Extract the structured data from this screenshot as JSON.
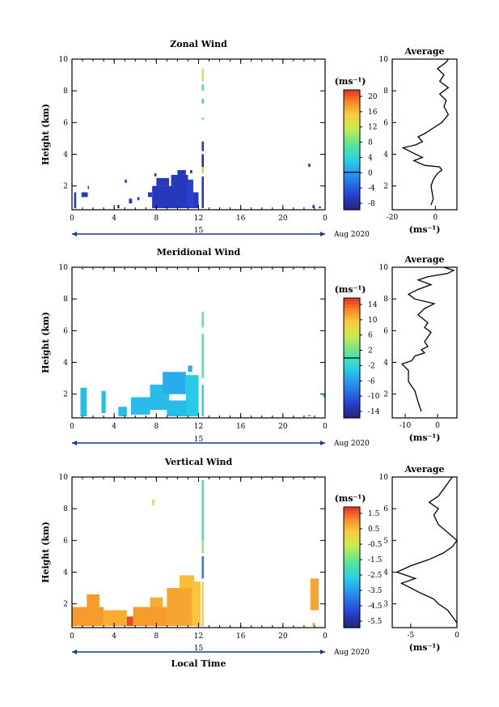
{
  "chart_data": [
    {
      "type": "heatmap",
      "title": "Zonal Wind",
      "ylabel": "Height (km)",
      "xlim": [
        0,
        24
      ],
      "ylim": [
        0.5,
        10
      ],
      "xticks": [
        "0",
        "4",
        "8",
        "12",
        "16",
        "20",
        "0"
      ],
      "yticks": [
        "2",
        "4",
        "6",
        "8",
        "10"
      ],
      "date_label": "15",
      "date_suffix": "Aug 2020",
      "colorbar": {
        "unit": "(ms⁻¹)",
        "ticks": [
          "20",
          "16",
          "12",
          "8",
          "4",
          "0",
          "-4",
          "-8"
        ],
        "range": [
          -10,
          22
        ],
        "zero_line": 0
      },
      "average": {
        "title": "Average",
        "xlim": [
          -20,
          10
        ],
        "xticks": [
          "-20",
          "0"
        ],
        "xlabel": "(ms⁻¹)",
        "yticks": [
          "2",
          "4",
          "6",
          "8",
          "10"
        ],
        "profile": [
          [
            -2,
            0.8
          ],
          [
            -1,
            1.2
          ],
          [
            -1.5,
            1.6
          ],
          [
            -2,
            2.0
          ],
          [
            -1,
            2.4
          ],
          [
            1,
            2.8
          ],
          [
            3,
            3.0
          ],
          [
            2,
            3.2
          ],
          [
            -5,
            3.3
          ],
          [
            -10,
            3.6
          ],
          [
            -6,
            3.8
          ],
          [
            -12,
            4.2
          ],
          [
            -15,
            4.4
          ],
          [
            -9,
            4.6
          ],
          [
            -6,
            4.8
          ],
          [
            -8,
            5.1
          ],
          [
            -5,
            5.3
          ],
          [
            3,
            6.0
          ],
          [
            6,
            6.5
          ],
          [
            4,
            7.0
          ],
          [
            5,
            7.4
          ],
          [
            2,
            7.8
          ],
          [
            6,
            8.2
          ],
          [
            2,
            8.6
          ],
          [
            4,
            9.0
          ],
          [
            1,
            9.4
          ],
          [
            5,
            9.8
          ],
          [
            6,
            10.0
          ]
        ]
      },
      "cells": [
        {
          "x": [
            0.2,
            0.4
          ],
          "y": [
            0.6,
            1.6
          ],
          "v": -7
        },
        {
          "x": [
            0.9,
            1.5
          ],
          "y": [
            1.3,
            1.6
          ],
          "v": -7
        },
        {
          "x": [
            1.5,
            1.6
          ],
          "y": [
            1.8,
            2.0
          ],
          "v": -7
        },
        {
          "x": [
            4.3,
            4.5
          ],
          "y": [
            0.6,
            0.8
          ],
          "v": -7
        },
        {
          "x": [
            5.0,
            5.2
          ],
          "y": [
            2.2,
            2.4
          ],
          "v": -7
        },
        {
          "x": [
            5.4,
            5.7
          ],
          "y": [
            0.9,
            1.2
          ],
          "v": -7
        },
        {
          "x": [
            6.2,
            6.4
          ],
          "y": [
            1.1,
            1.3
          ],
          "v": -6
        },
        {
          "x": [
            7.2,
            7.6
          ],
          "y": [
            1.3,
            1.6
          ],
          "v": -6
        },
        {
          "x": [
            7.8,
            8.0
          ],
          "y": [
            2.6,
            2.8
          ],
          "v": -6
        },
        {
          "x": [
            7.6,
            9.6
          ],
          "y": [
            0.6,
            2.0
          ],
          "v": -7
        },
        {
          "x": [
            8.0,
            9.2
          ],
          "y": [
            2.0,
            2.5
          ],
          "v": -7
        },
        {
          "x": [
            9.4,
            11.0
          ],
          "y": [
            0.6,
            2.7
          ],
          "v": -7
        },
        {
          "x": [
            10.0,
            10.8
          ],
          "y": [
            2.7,
            3.0
          ],
          "v": -7
        },
        {
          "x": [
            11.0,
            11.5
          ],
          "y": [
            0.6,
            2.4
          ],
          "v": -6
        },
        {
          "x": [
            11.5,
            12.0
          ],
          "y": [
            0.6,
            1.6
          ],
          "v": -7
        },
        {
          "x": [
            11.2,
            11.4
          ],
          "y": [
            2.8,
            3.0
          ],
          "v": -8
        },
        {
          "x": [
            12.3,
            12.5
          ],
          "y": [
            0.6,
            2.6
          ],
          "v": -7
        },
        {
          "x": [
            12.3,
            12.5
          ],
          "y": [
            3.0,
            4.0
          ],
          "v": -8
        },
        {
          "x": [
            12.3,
            12.5
          ],
          "y": [
            4.2,
            4.8
          ],
          "v": -7
        },
        {
          "x": [
            12.3,
            12.5
          ],
          "y": [
            2.8,
            3.2
          ],
          "v": 14
        },
        {
          "x": [
            12.3,
            12.5
          ],
          "y": [
            6.2,
            6.3
          ],
          "v": 4
        },
        {
          "x": [
            12.3,
            12.5
          ],
          "y": [
            7.2,
            7.5
          ],
          "v": 4
        },
        {
          "x": [
            12.3,
            12.5
          ],
          "y": [
            8.0,
            8.4
          ],
          "v": 6
        },
        {
          "x": [
            12.3,
            12.5
          ],
          "y": [
            8.6,
            9.4
          ],
          "v": 12
        },
        {
          "x": [
            22.4,
            22.6
          ],
          "y": [
            3.2,
            3.4
          ],
          "v": -7
        },
        {
          "x": [
            22.8,
            23.0
          ],
          "y": [
            0.6,
            0.8
          ],
          "v": -7
        },
        {
          "x": [
            23.4,
            23.6
          ],
          "y": [
            0.6,
            0.7
          ],
          "v": -7
        }
      ]
    },
    {
      "type": "heatmap",
      "title": "Meridional Wind",
      "ylabel": "Height (km)",
      "xlim": [
        0,
        24
      ],
      "ylim": [
        0.5,
        10
      ],
      "xticks": [
        "0",
        "4",
        "8",
        "12",
        "16",
        "20",
        "0"
      ],
      "yticks": [
        "2",
        "4",
        "6",
        "8",
        "10"
      ],
      "date_label": "15",
      "date_suffix": "Aug 2020",
      "colorbar": {
        "unit": "(ms⁻¹)",
        "ticks": [
          "14",
          "10",
          "6",
          "2",
          "-2",
          "-6",
          "-10",
          "-14"
        ],
        "range": [
          -16,
          16
        ],
        "zero_line": 0
      },
      "average": {
        "title": "Average",
        "xlim": [
          -14,
          6
        ],
        "xticks": [
          "-10",
          "0"
        ],
        "xlabel": "(ms⁻¹)",
        "yticks": [
          "2",
          "4",
          "6",
          "8",
          "10"
        ],
        "profile": [
          [
            -5,
            0.9
          ],
          [
            -6,
            1.5
          ],
          [
            -7,
            2.2
          ],
          [
            -9,
            2.8
          ],
          [
            -9,
            3.5
          ],
          [
            -11,
            3.9
          ],
          [
            -8,
            4.1
          ],
          [
            -7,
            4.4
          ],
          [
            -4,
            4.6
          ],
          [
            -5,
            4.8
          ],
          [
            -3,
            5.0
          ],
          [
            -4,
            5.3
          ],
          [
            -3,
            5.6
          ],
          [
            -2,
            5.9
          ],
          [
            -4,
            6.2
          ],
          [
            -3,
            6.5
          ],
          [
            -6,
            7.0
          ],
          [
            -4,
            7.4
          ],
          [
            -1,
            7.7
          ],
          [
            -7,
            8.0
          ],
          [
            -9,
            8.3
          ],
          [
            -6,
            8.6
          ],
          [
            -2,
            8.9
          ],
          [
            -6,
            9.2
          ],
          [
            -3,
            9.4
          ],
          [
            3,
            9.6
          ],
          [
            5,
            9.8
          ],
          [
            2,
            10.0
          ]
        ]
      },
      "cells": [
        {
          "x": [
            0.8,
            1.4
          ],
          "y": [
            0.6,
            2.4
          ],
          "v": -4
        },
        {
          "x": [
            2.8,
            3.2
          ],
          "y": [
            0.8,
            2.2
          ],
          "v": -4
        },
        {
          "x": [
            4.4,
            5.2
          ],
          "y": [
            0.6,
            1.2
          ],
          "v": -4
        },
        {
          "x": [
            5.6,
            7.4
          ],
          "y": [
            0.7,
            1.8
          ],
          "v": -4
        },
        {
          "x": [
            7.4,
            9.2
          ],
          "y": [
            1.0,
            2.6
          ],
          "v": -4
        },
        {
          "x": [
            8.6,
            10.8
          ],
          "y": [
            2.0,
            3.4
          ],
          "v": -5
        },
        {
          "x": [
            9.0,
            11.0
          ],
          "y": [
            0.6,
            1.6
          ],
          "v": -4
        },
        {
          "x": [
            10.8,
            12.0
          ],
          "y": [
            0.6,
            3.2
          ],
          "v": -3
        },
        {
          "x": [
            11.0,
            11.4
          ],
          "y": [
            3.4,
            3.8
          ],
          "v": -5
        },
        {
          "x": [
            12.3,
            12.5
          ],
          "y": [
            0.6,
            2.6
          ],
          "v": -2
        },
        {
          "x": [
            12.3,
            12.5
          ],
          "y": [
            3.0,
            5.8
          ],
          "v": 1
        },
        {
          "x": [
            12.3,
            12.5
          ],
          "y": [
            6.2,
            7.2
          ],
          "v": 2
        },
        {
          "x": [
            22.4,
            22.6
          ],
          "y": [
            0.6,
            0.7
          ],
          "v": -4
        },
        {
          "x": [
            23.8,
            24.0
          ],
          "y": [
            1.8,
            2.0
          ],
          "v": -3
        }
      ]
    },
    {
      "type": "heatmap",
      "title": "Vertical Wind",
      "ylabel": "Height (km)",
      "xlabel": "Local Time",
      "xlim": [
        0,
        24
      ],
      "ylim": [
        0.5,
        10
      ],
      "xticks": [
        "0",
        "4",
        "8",
        "12",
        "16",
        "20",
        "0"
      ],
      "yticks": [
        "2",
        "4",
        "6",
        "8",
        "10"
      ],
      "date_label": "15",
      "date_suffix": "Aug 2020",
      "colorbar": {
        "unit": "(ms⁻¹)",
        "ticks": [
          "1.5",
          "0.5",
          "-0.5",
          "-1.5",
          "-2.5",
          "-3.5",
          "-4.5",
          "-5.5"
        ],
        "range": [
          -6,
          2
        ]
      },
      "average": {
        "title": "Average",
        "xlim": [
          -7,
          0
        ],
        "xticks": [
          "-5",
          "0"
        ],
        "xlabel": "(ms⁻¹)",
        "yticks": [
          "3",
          "4",
          "5",
          "6",
          "10"
        ],
        "profile": [
          [
            0,
            0.8
          ],
          [
            -0.5,
            1.2
          ],
          [
            -1,
            1.6
          ],
          [
            -2,
            2.0
          ],
          [
            -2.5,
            2.3
          ],
          [
            -4,
            2.7
          ],
          [
            -5,
            3.0
          ],
          [
            -6,
            3.3
          ],
          [
            -4.5,
            3.6
          ],
          [
            -6.5,
            4.0
          ],
          [
            -5,
            4.4
          ],
          [
            -3,
            4.8
          ],
          [
            -1.5,
            5.2
          ],
          [
            -0.5,
            5.6
          ],
          [
            0,
            6.0
          ],
          [
            -1,
            6.5
          ],
          [
            -2,
            7.0
          ],
          [
            -2.5,
            7.6
          ],
          [
            -2,
            8.0
          ],
          [
            -3,
            8.4
          ],
          [
            -2,
            8.8
          ],
          [
            -1.5,
            9.2
          ],
          [
            -1,
            9.6
          ],
          [
            -0.5,
            10.0
          ]
        ]
      },
      "cells": [
        {
          "x": [
            0.0,
            3.0
          ],
          "y": [
            0.6,
            1.8
          ],
          "v": 1.0
        },
        {
          "x": [
            1.4,
            2.6
          ],
          "y": [
            1.8,
            2.6
          ],
          "v": 1.0
        },
        {
          "x": [
            3.0,
            5.2
          ],
          "y": [
            0.6,
            1.6
          ],
          "v": 0.8
        },
        {
          "x": [
            5.2,
            5.8
          ],
          "y": [
            0.6,
            1.2
          ],
          "v": 1.8
        },
        {
          "x": [
            5.8,
            9.0
          ],
          "y": [
            0.6,
            1.8
          ],
          "v": 1.0
        },
        {
          "x": [
            7.4,
            8.6
          ],
          "y": [
            1.8,
            2.4
          ],
          "v": 0.8
        },
        {
          "x": [
            9.0,
            11.4
          ],
          "y": [
            0.6,
            3.0
          ],
          "v": 0.9
        },
        {
          "x": [
            10.2,
            11.6
          ],
          "y": [
            3.0,
            3.8
          ],
          "v": 0.6
        },
        {
          "x": [
            11.4,
            12.2
          ],
          "y": [
            0.6,
            3.4
          ],
          "v": 0.5
        },
        {
          "x": [
            7.6,
            7.8
          ],
          "y": [
            8.2,
            8.6
          ],
          "v": -0.3
        },
        {
          "x": [
            12.3,
            12.5
          ],
          "y": [
            0.6,
            3.4
          ],
          "v": 0.2
        },
        {
          "x": [
            12.3,
            12.5
          ],
          "y": [
            3.6,
            5.0
          ],
          "v": -4.0
        },
        {
          "x": [
            12.3,
            12.5
          ],
          "y": [
            5.2,
            6.0
          ],
          "v": -1.0
        },
        {
          "x": [
            12.3,
            12.5
          ],
          "y": [
            6.0,
            9.8
          ],
          "v": -2.0
        },
        {
          "x": [
            22.6,
            23.4
          ],
          "y": [
            1.6,
            3.6
          ],
          "v": 0.9
        },
        {
          "x": [
            22.8,
            23.0
          ],
          "y": [
            0.6,
            0.8
          ],
          "v": 0.9
        }
      ]
    }
  ]
}
